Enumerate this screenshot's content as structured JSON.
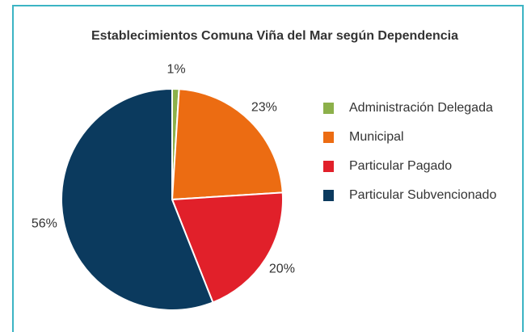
{
  "chart_data": {
    "type": "pie",
    "title": "Establecimientos Comuna Viña del Mar según Dependencia",
    "categories": [
      "Administración Delegada",
      "Municipal",
      "Particular Pagado",
      "Particular Subvencionado"
    ],
    "values": [
      1,
      23,
      20,
      56
    ],
    "value_labels": [
      "1%",
      "23%",
      "20%",
      "56%"
    ],
    "colors": [
      "#8cb04a",
      "#ec6c12",
      "#e1202a",
      "#0b3a5e"
    ],
    "legend": "right"
  }
}
